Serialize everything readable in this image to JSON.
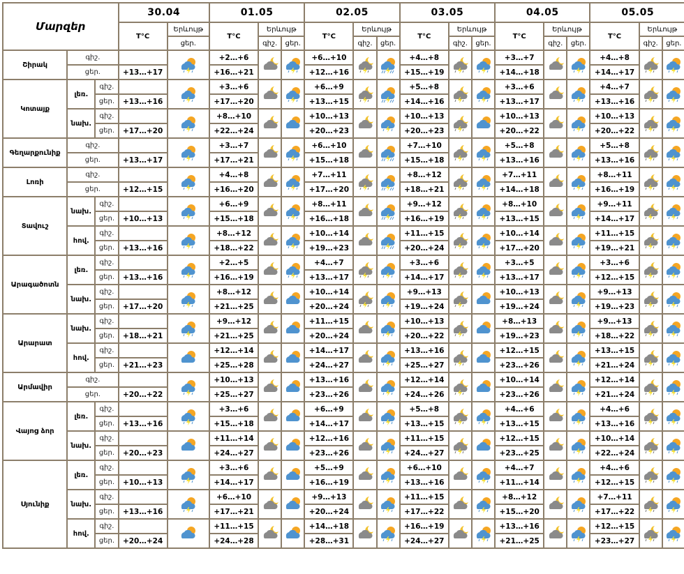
{
  "header": {
    "title": "Մարզեր",
    "temp_label": "T°C",
    "phenomenon_label": "Երևույթ",
    "night_label": "գիշ.",
    "day_label": "ցեր.",
    "first_date": "30.04",
    "dates": [
      "01.05",
      "02.05",
      "03.05",
      "04.05",
      "05.05"
    ]
  },
  "icon_colors": {
    "night_cloud": "#8a8a8a",
    "moon": "#f2c230",
    "day_cloud": "#4f93cf",
    "sun": "#f5a623",
    "lightning": "#f7e03a"
  },
  "regions": [
    {
      "name": "Շիրակ",
      "zones": [
        {
          "sub": "",
          "first_day": "+13…+17",
          "first_icon": "day-storm",
          "night": [
            "+2…+6",
            "+6…+10",
            "+4…+8",
            "+3…+7",
            "+4…+8"
          ],
          "day": [
            "+16…+21",
            "+12…+16",
            "+15…+19",
            "+14…+18",
            "+14…+17"
          ],
          "night_icons": [
            "night-cloudy",
            "night-storm",
            "night-storm",
            "night-cloudy",
            "night-storm"
          ],
          "day_icons": [
            "day-storm",
            "day-rain-storm",
            "day-storm",
            "day-storm",
            "day-storm"
          ]
        }
      ]
    },
    {
      "name": "Կոտայք",
      "zones": [
        {
          "sub": "լեռ.",
          "first_day": "+13…+16",
          "first_icon": "day-storm",
          "night": [
            "+3…+6",
            "+6…+9",
            "+5…+8",
            "+3…+6",
            "+4…+7"
          ],
          "day": [
            "+17…+20",
            "+13…+15",
            "+14…+16",
            "+13…+17",
            "+13…+16"
          ],
          "night_icons": [
            "night-cloudy",
            "night-storm",
            "night-storm",
            "night-cloudy",
            "night-storm"
          ],
          "day_icons": [
            "day-storm",
            "day-rain-storm",
            "day-storm",
            "day-storm",
            "day-storm"
          ]
        },
        {
          "sub": "նախ.",
          "first_day": "+17…+20",
          "first_icon": "day-storm",
          "night": [
            "+8…+10",
            "+10…+13",
            "+10…+13",
            "+10…+13",
            "+10…+13"
          ],
          "day": [
            "+22…+24",
            "+20…+23",
            "+20…+23",
            "+20…+22",
            "+20…+22"
          ],
          "night_icons": [
            "night-cloudy",
            "night-cloudy",
            "night-storm",
            "night-cloudy",
            "night-storm"
          ],
          "day_icons": [
            "day-cloudy",
            "day-storm",
            "day-cloudy",
            "day-storm",
            "day-storm"
          ]
        }
      ]
    },
    {
      "name": "Գեղարքունիք",
      "zones": [
        {
          "sub": "",
          "first_day": "+13…+17",
          "first_icon": "day-storm",
          "night": [
            "+3…+7",
            "+6…+10",
            "+7…+10",
            "+5…+8",
            "+5…+8"
          ],
          "day": [
            "+17…+21",
            "+15…+18",
            "+15…+18",
            "+13…+16",
            "+13…+16"
          ],
          "night_icons": [
            "night-cloudy",
            "night-cloudy",
            "night-storm",
            "night-cloudy",
            "night-storm"
          ],
          "day_icons": [
            "day-storm",
            "day-rain-storm",
            "day-storm",
            "day-storm",
            "day-storm"
          ]
        }
      ]
    },
    {
      "name": "Լոռի",
      "zones": [
        {
          "sub": "",
          "first_day": "+12…+15",
          "first_icon": "day-storm",
          "night": [
            "+4…+8",
            "+7…+11",
            "+8…+12",
            "+7…+11",
            "+8…+11"
          ],
          "day": [
            "+16…+20",
            "+17…+20",
            "+18…+21",
            "+14…+18",
            "+16…+19"
          ],
          "night_icons": [
            "night-cloudy",
            "night-storm",
            "night-storm",
            "night-cloudy",
            "night-storm"
          ],
          "day_icons": [
            "day-storm",
            "day-rain-storm",
            "day-storm",
            "day-storm",
            "day-storm"
          ]
        }
      ]
    },
    {
      "name": "Տավուշ",
      "zones": [
        {
          "sub": "նախ.",
          "first_day": "+10…+13",
          "first_icon": "day-storm",
          "night": [
            "+6…+9",
            "+8…+11",
            "+9…+12",
            "+8…+10",
            "+9…+11"
          ],
          "day": [
            "+15…+18",
            "+16…+18",
            "+16…+19",
            "+13…+15",
            "+14…+17"
          ],
          "night_icons": [
            "night-cloudy",
            "night-cloudy",
            "night-storm",
            "night-cloudy",
            "night-storm"
          ],
          "day_icons": [
            "day-storm",
            "day-rain-storm",
            "day-storm",
            "day-storm",
            "day-storm"
          ]
        },
        {
          "sub": "հով.",
          "first_day": "+13…+16",
          "first_icon": "day-storm",
          "night": [
            "+8…+12",
            "+10…+14",
            "+11…+15",
            "+10…+14",
            "+11…+15"
          ],
          "day": [
            "+18…+22",
            "+19…+23",
            "+20…+24",
            "+17…+20",
            "+19…+21"
          ],
          "night_icons": [
            "night-cloudy",
            "night-cloudy",
            "night-storm",
            "night-cloudy",
            "night-storm"
          ],
          "day_icons": [
            "day-storm",
            "day-rain-storm",
            "day-storm",
            "day-storm",
            "day-storm"
          ]
        }
      ]
    },
    {
      "name": "Արագածոտն",
      "zones": [
        {
          "sub": "լեռ.",
          "first_day": "+13…+16",
          "first_icon": "day-storm",
          "night": [
            "+2…+5",
            "+4…+7",
            "+3…+6",
            "+3…+5",
            "+3…+6"
          ],
          "day": [
            "+16…+19",
            "+13…+17",
            "+14…+17",
            "+13…+17",
            "+12…+15"
          ],
          "night_icons": [
            "night-cloudy",
            "night-storm",
            "night-storm",
            "night-cloudy",
            "night-storm"
          ],
          "day_icons": [
            "day-storm",
            "day-storm",
            "day-storm",
            "day-storm",
            "day-storm"
          ]
        },
        {
          "sub": "նախ.",
          "first_day": "+17…+20",
          "first_icon": "day-storm",
          "night": [
            "+8…+12",
            "+10…+14",
            "+9…+13",
            "+10…+13",
            "+9…+13"
          ],
          "day": [
            "+21…+25",
            "+20…+24",
            "+19…+24",
            "+19…+24",
            "+19…+23"
          ],
          "night_icons": [
            "night-cloudy",
            "night-storm",
            "night-storm",
            "night-cloudy",
            "night-storm"
          ],
          "day_icons": [
            "day-cloudy",
            "day-storm",
            "day-cloudy",
            "day-storm",
            "day-storm"
          ]
        }
      ]
    },
    {
      "name": "Արարատ",
      "zones": [
        {
          "sub": "նախ.",
          "first_day": "+18…+21",
          "first_icon": "day-storm",
          "night": [
            "+9…+12",
            "+11…+15",
            "+10…+13",
            "+8…+13",
            "+9…+13"
          ],
          "day": [
            "+21…+25",
            "+20…+24",
            "+20…+22",
            "+19…+23",
            "+18…+22"
          ],
          "night_icons": [
            "night-cloudy",
            "night-cloudy",
            "night-storm",
            "night-cloudy",
            "night-storm"
          ],
          "day_icons": [
            "day-cloudy",
            "day-storm",
            "day-cloudy",
            "day-storm",
            "day-storm"
          ]
        },
        {
          "sub": "հով.",
          "first_day": "+21…+23",
          "first_icon": "day-cloudy",
          "night": [
            "+12…+14",
            "+14…+17",
            "+13…+16",
            "+12…+15",
            "+13…+15"
          ],
          "day": [
            "+25…+28",
            "+24…+27",
            "+25…+27",
            "+23…+26",
            "+21…+24"
          ],
          "night_icons": [
            "night-cloudy",
            "night-cloudy",
            "night-storm",
            "night-cloudy",
            "night-storm"
          ],
          "day_icons": [
            "day-cloudy",
            "day-storm",
            "day-cloudy",
            "day-storm",
            "day-storm"
          ]
        }
      ]
    },
    {
      "name": "Արմավիր",
      "zones": [
        {
          "sub": "",
          "first_day": "+20…+22",
          "first_icon": "day-storm",
          "night": [
            "+10…+13",
            "+13…+16",
            "+12…+14",
            "+10…+14",
            "+12…+14"
          ],
          "day": [
            "+25…+27",
            "+23…+26",
            "+24…+26",
            "+23…+26",
            "+21…+24"
          ],
          "night_icons": [
            "night-cloudy",
            "night-cloudy",
            "night-storm",
            "night-cloudy",
            "night-storm"
          ],
          "day_icons": [
            "day-cloudy",
            "day-storm",
            "day-cloudy",
            "day-storm",
            "day-storm"
          ]
        }
      ]
    },
    {
      "name": "Վայոց ձոր",
      "zones": [
        {
          "sub": "լեռ.",
          "first_day": "+13…+16",
          "first_icon": "day-storm",
          "night": [
            "+3…+6",
            "+6…+9",
            "+5…+8",
            "+4…+6",
            "+4…+6"
          ],
          "day": [
            "+15…+18",
            "+14…+17",
            "+13…+15",
            "+13…+15",
            "+13…+16"
          ],
          "night_icons": [
            "night-cloudy",
            "night-cloudy",
            "night-storm",
            "night-cloudy",
            "night-storm"
          ],
          "day_icons": [
            "day-cloudy",
            "day-storm",
            "day-storm",
            "day-storm",
            "day-storm"
          ]
        },
        {
          "sub": "նախ.",
          "first_day": "+20…+23",
          "first_icon": "day-cloudy",
          "night": [
            "+11…+14",
            "+12…+16",
            "+11…+15",
            "+12…+15",
            "+10…+14"
          ],
          "day": [
            "+24…+27",
            "+23…+26",
            "+24…+27",
            "+23…+25",
            "+22…+24"
          ],
          "night_icons": [
            "night-cloudy",
            "night-cloudy",
            "night-storm",
            "night-cloudy",
            "night-storm"
          ],
          "day_icons": [
            "day-cloudy",
            "day-storm",
            "day-cloudy",
            "day-storm",
            "day-storm"
          ]
        }
      ]
    },
    {
      "name": "Սյունիք",
      "zones": [
        {
          "sub": "լեռ.",
          "first_day": "+10…+13",
          "first_icon": "day-storm",
          "night": [
            "+3…+6",
            "+5…+9",
            "+6…+10",
            "+4…+7",
            "+4…+6"
          ],
          "day": [
            "+14…+17",
            "+16…+19",
            "+13…+16",
            "+11…+14",
            "+12…+15"
          ],
          "night_icons": [
            "night-cloudy",
            "night-cloudy",
            "night-cloudy",
            "night-cloudy",
            "night-storm"
          ],
          "day_icons": [
            "day-cloudy",
            "day-storm",
            "day-storm",
            "day-storm",
            "day-storm"
          ]
        },
        {
          "sub": "նախ.",
          "first_day": "+13…+16",
          "first_icon": "day-storm",
          "night": [
            "+6…+10",
            "+9…+13",
            "+11…+15",
            "+8…+12",
            "+7…+11"
          ],
          "day": [
            "+17…+21",
            "+20…+24",
            "+17…+22",
            "+15…+20",
            "+17…+22"
          ],
          "night_icons": [
            "night-cloudy",
            "night-cloudy",
            "night-cloudy",
            "night-cloudy",
            "night-storm"
          ],
          "day_icons": [
            "day-cloudy",
            "day-storm",
            "day-storm",
            "day-storm",
            "day-storm"
          ]
        },
        {
          "sub": "հով.",
          "first_day": "+20…+24",
          "first_icon": "day-cloudy",
          "night": [
            "+11…+15",
            "+14…+18",
            "+16…+19",
            "+13…+16",
            "+12…+15"
          ],
          "day": [
            "+24…+28",
            "+28…+31",
            "+24…+27",
            "+21…+25",
            "+23…+27"
          ],
          "night_icons": [
            "night-cloudy",
            "night-cloudy",
            "night-cloudy",
            "night-cloudy",
            "night-storm"
          ],
          "day_icons": [
            "day-cloudy",
            "day-storm",
            "day-storm",
            "day-storm",
            "day-storm"
          ]
        }
      ]
    }
  ]
}
